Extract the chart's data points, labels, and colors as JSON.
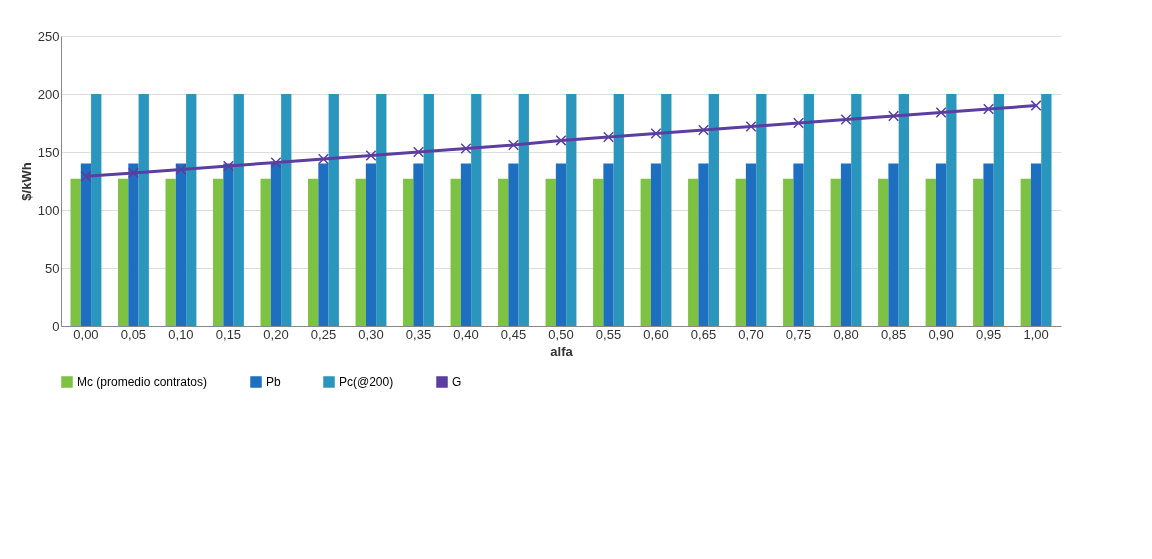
{
  "chart_data": {
    "type": "bar",
    "xlabel": "alfa",
    "ylabel": "$/kWh",
    "categories": [
      "0,00",
      "0,05",
      "0,10",
      "0,15",
      "0,20",
      "0,25",
      "0,30",
      "0,35",
      "0,40",
      "0,45",
      "0,50",
      "0,55",
      "0,60",
      "0,65",
      "0,70",
      "0,75",
      "0,80",
      "0,85",
      "0,90",
      "0,95",
      "1,00"
    ],
    "series": [
      {
        "name": "Mc (promedio contratos)",
        "color": "#7dc242",
        "values": [
          127,
          127,
          127,
          127,
          127,
          127,
          127,
          127,
          127,
          127,
          127,
          127,
          127,
          127,
          127,
          127,
          127,
          127,
          127,
          127,
          127
        ]
      },
      {
        "name": "Pb",
        "color": "#1f6fc1",
        "values": [
          140,
          140,
          140,
          140,
          140,
          140,
          140,
          140,
          140,
          140,
          140,
          140,
          140,
          140,
          140,
          140,
          140,
          140,
          140,
          140,
          140
        ]
      },
      {
        "name": "Pc(@200)",
        "color": "#2b96bd",
        "values": [
          200,
          200,
          200,
          200,
          200,
          200,
          200,
          200,
          200,
          200,
          200,
          200,
          200,
          200,
          200,
          200,
          200,
          200,
          200,
          200,
          200
        ]
      },
      {
        "name": "G",
        "type": "line",
        "color": "#5b3ea0",
        "marker": "cross",
        "values": [
          129,
          132,
          135,
          138,
          141,
          144,
          147,
          150,
          153,
          156,
          160,
          163,
          166,
          169,
          172,
          175,
          178,
          181,
          184,
          187,
          190
        ]
      }
    ],
    "ylim": [
      0,
      250
    ],
    "yticks": [
      0,
      50,
      100,
      150,
      200,
      250
    ],
    "grid": "y",
    "legend": "bottom"
  }
}
